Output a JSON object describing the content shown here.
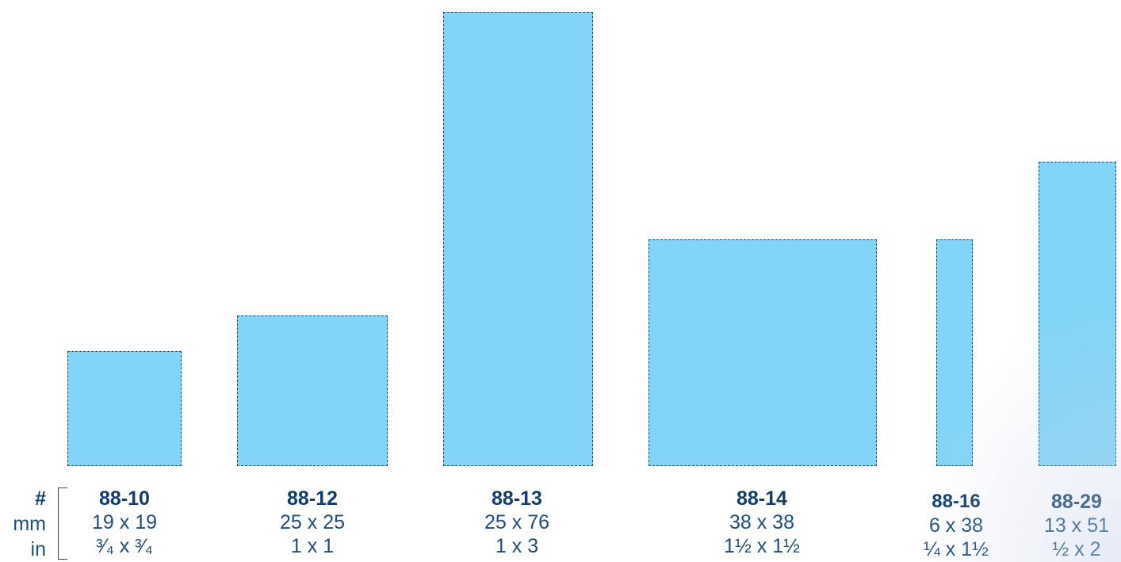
{
  "legend": {
    "hash": "#",
    "mm": "mm",
    "in": "in"
  },
  "colors": {
    "tile_fill": "#82d5f6",
    "tile_border": "#1d4a6e",
    "code_text": "#123d6a",
    "dim_text": "#1f4d7a"
  },
  "items": [
    {
      "code": "88-10",
      "mm": "19 x 19",
      "inch": "³⁄₄ x ³⁄₄"
    },
    {
      "code": "88-12",
      "mm": "25 x 25",
      "inch": "1 x 1"
    },
    {
      "code": "88-13",
      "mm": "25 x 76",
      "inch": "1 x 3"
    },
    {
      "code": "88-14",
      "mm": "38 x 38",
      "inch": "1½ x 1½"
    },
    {
      "code": "88-16",
      "mm": "6 x 38",
      "inch": "¼ x 1½"
    },
    {
      "code": "88-29",
      "mm": "13 x 51",
      "inch": "½ x 2"
    }
  ]
}
